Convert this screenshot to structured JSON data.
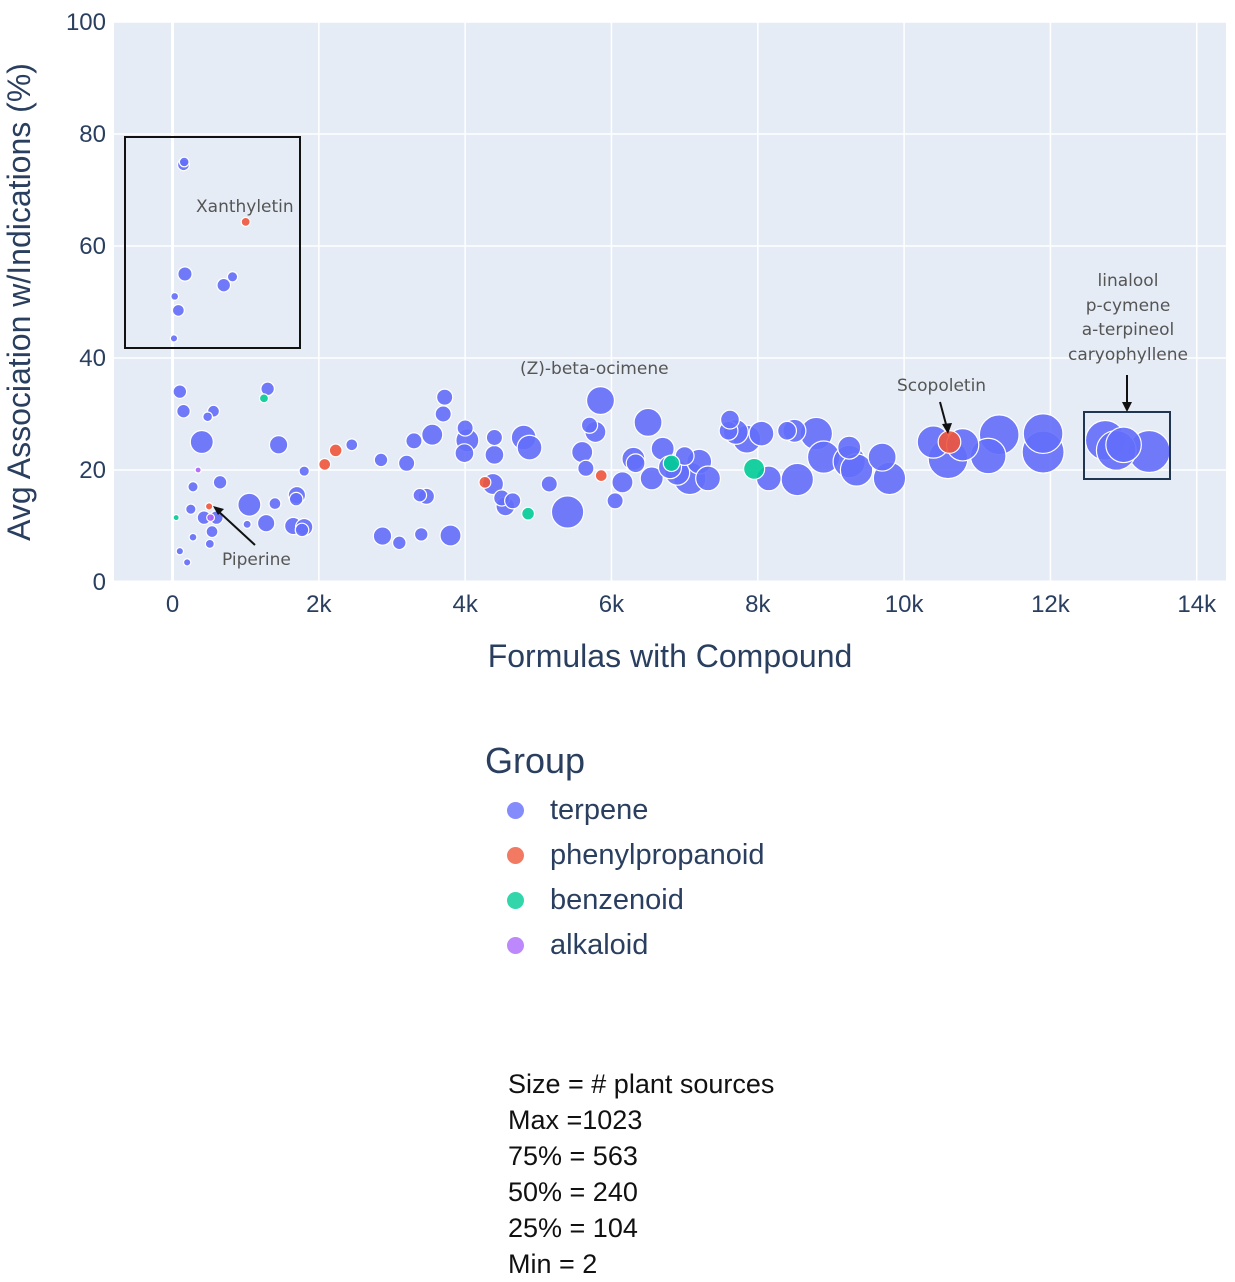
{
  "chart_data": {
    "type": "scatter",
    "xlabel": "Formulas with Compound",
    "ylabel": "Avg Association w/Indications (%)",
    "xlim": [
      -800,
      14400
    ],
    "ylim": [
      0,
      100
    ],
    "x_ticks": [
      0,
      2000,
      4000,
      6000,
      8000,
      10000,
      12000,
      14000
    ],
    "x_tick_labels": [
      "0",
      "2k",
      "4k",
      "6k",
      "8k",
      "10k",
      "12k",
      "14k"
    ],
    "y_ticks": [
      0,
      20,
      40,
      60,
      80,
      100
    ],
    "grid": true,
    "size_encodes": "# plant sources",
    "legend": {
      "title": "Group",
      "placement": "below",
      "entries": [
        {
          "name": "terpene",
          "color": "#636efa"
        },
        {
          "name": "phenylpropanoid",
          "color": "#ef553b"
        },
        {
          "name": "benzenoid",
          "color": "#00cc96"
        },
        {
          "name": "alkaloid",
          "color": "#ab63fa"
        }
      ]
    },
    "series": [
      {
        "name": "terpene",
        "color": "#636efa",
        "points": [
          {
            "x": 150,
            "y": 74.5,
            "s": 40
          },
          {
            "x": 160,
            "y": 75,
            "s": 20
          },
          {
            "x": 170,
            "y": 55,
            "s": 70
          },
          {
            "x": 700,
            "y": 53,
            "s": 60
          },
          {
            "x": 820,
            "y": 54.5,
            "s": 25
          },
          {
            "x": 80,
            "y": 48.5,
            "s": 40
          },
          {
            "x": 30,
            "y": 51,
            "s": 8
          },
          {
            "x": 20,
            "y": 43.5,
            "s": 6
          },
          {
            "x": 100,
            "y": 34,
            "s": 60
          },
          {
            "x": 150,
            "y": 30.5,
            "s": 60
          },
          {
            "x": 480,
            "y": 29.5,
            "s": 20
          },
          {
            "x": 560,
            "y": 30.5,
            "s": 40
          },
          {
            "x": 1300,
            "y": 34.5,
            "s": 60
          },
          {
            "x": 400,
            "y": 25,
            "s": 250
          },
          {
            "x": 1450,
            "y": 24.5,
            "s": 140
          },
          {
            "x": 650,
            "y": 17.8,
            "s": 60
          },
          {
            "x": 280,
            "y": 17,
            "s": 25
          },
          {
            "x": 250,
            "y": 13,
            "s": 25
          },
          {
            "x": 430,
            "y": 11.5,
            "s": 60
          },
          {
            "x": 600,
            "y": 11.5,
            "s": 60
          },
          {
            "x": 540,
            "y": 9,
            "s": 40
          },
          {
            "x": 510,
            "y": 6.8,
            "s": 15
          },
          {
            "x": 1050,
            "y": 13.8,
            "s": 250
          },
          {
            "x": 1400,
            "y": 14,
            "s": 40
          },
          {
            "x": 1280,
            "y": 10.5,
            "s": 120
          },
          {
            "x": 1700,
            "y": 15.5,
            "s": 120
          },
          {
            "x": 1690,
            "y": 14.8,
            "s": 60
          },
          {
            "x": 1650,
            "y": 10,
            "s": 120
          },
          {
            "x": 1800,
            "y": 9.8,
            "s": 120
          },
          {
            "x": 1770,
            "y": 9.3,
            "s": 60
          },
          {
            "x": 1800,
            "y": 19.8,
            "s": 25
          },
          {
            "x": 2450,
            "y": 24.5,
            "s": 40
          },
          {
            "x": 1020,
            "y": 10.3,
            "s": 10
          },
          {
            "x": 200,
            "y": 3.5,
            "s": 6
          },
          {
            "x": 100,
            "y": 5.5,
            "s": 6
          },
          {
            "x": 280,
            "y": 8,
            "s": 8
          },
          {
            "x": 2850,
            "y": 21.8,
            "s": 60
          },
          {
            "x": 2870,
            "y": 8.2,
            "s": 140
          },
          {
            "x": 3100,
            "y": 7,
            "s": 60
          },
          {
            "x": 3200,
            "y": 21.2,
            "s": 100
          },
          {
            "x": 3300,
            "y": 25.2,
            "s": 100
          },
          {
            "x": 3380,
            "y": 15.5,
            "s": 60
          },
          {
            "x": 3400,
            "y": 8.5,
            "s": 60
          },
          {
            "x": 3470,
            "y": 15.3,
            "s": 100
          },
          {
            "x": 3550,
            "y": 26.3,
            "s": 200
          },
          {
            "x": 3720,
            "y": 33,
            "s": 100
          },
          {
            "x": 3700,
            "y": 30,
            "s": 100
          },
          {
            "x": 3800,
            "y": 8.3,
            "s": 200
          },
          {
            "x": 4000,
            "y": 27.5,
            "s": 100
          },
          {
            "x": 4030,
            "y": 25.3,
            "s": 250
          },
          {
            "x": 3990,
            "y": 23,
            "s": 150
          },
          {
            "x": 4400,
            "y": 25.8,
            "s": 100
          },
          {
            "x": 4380,
            "y": 17.5,
            "s": 200
          },
          {
            "x": 4400,
            "y": 22.7,
            "s": 150
          },
          {
            "x": 4500,
            "y": 15,
            "s": 100
          },
          {
            "x": 4550,
            "y": 13.5,
            "s": 150
          },
          {
            "x": 4650,
            "y": 14.5,
            "s": 100
          },
          {
            "x": 4800,
            "y": 25.8,
            "s": 300
          },
          {
            "x": 4880,
            "y": 24,
            "s": 300
          },
          {
            "x": 5150,
            "y": 17.5,
            "s": 100
          },
          {
            "x": 5400,
            "y": 12.5,
            "s": 563
          },
          {
            "x": 5600,
            "y": 23.2,
            "s": 200
          },
          {
            "x": 5650,
            "y": 20.3,
            "s": 100
          },
          {
            "x": 5700,
            "y": 28,
            "s": 100
          },
          {
            "x": 5780,
            "y": 26.8,
            "s": 200
          },
          {
            "x": 5850,
            "y": 32.4,
            "s": 400
          },
          {
            "x": 6050,
            "y": 14.5,
            "s": 100
          },
          {
            "x": 6150,
            "y": 17.8,
            "s": 200
          },
          {
            "x": 6300,
            "y": 22,
            "s": 250
          },
          {
            "x": 6330,
            "y": 21.2,
            "s": 150
          },
          {
            "x": 6500,
            "y": 28.5,
            "s": 400
          },
          {
            "x": 6550,
            "y": 18.5,
            "s": 250
          },
          {
            "x": 6700,
            "y": 23.8,
            "s": 250
          },
          {
            "x": 6800,
            "y": 20.5,
            "s": 250
          },
          {
            "x": 6900,
            "y": 19.5,
            "s": 300
          },
          {
            "x": 7000,
            "y": 22.5,
            "s": 150
          },
          {
            "x": 7070,
            "y": 18.5,
            "s": 563
          },
          {
            "x": 7200,
            "y": 21.5,
            "s": 300
          },
          {
            "x": 7320,
            "y": 18.5,
            "s": 300
          },
          {
            "x": 7600,
            "y": 27,
            "s": 150
          },
          {
            "x": 7620,
            "y": 29,
            "s": 150
          },
          {
            "x": 7700,
            "y": 26.8,
            "s": 300
          },
          {
            "x": 7850,
            "y": 25.5,
            "s": 400
          },
          {
            "x": 8050,
            "y": 26.5,
            "s": 300
          },
          {
            "x": 8150,
            "y": 18.5,
            "s": 300
          },
          {
            "x": 8400,
            "y": 27,
            "s": 150
          },
          {
            "x": 8500,
            "y": 27,
            "s": 250
          },
          {
            "x": 8540,
            "y": 18.3,
            "s": 563
          },
          {
            "x": 8800,
            "y": 26.5,
            "s": 563
          },
          {
            "x": 8900,
            "y": 22.3,
            "s": 563
          },
          {
            "x": 9250,
            "y": 24,
            "s": 250
          },
          {
            "x": 9250,
            "y": 21.5,
            "s": 563
          },
          {
            "x": 9350,
            "y": 20,
            "s": 563
          },
          {
            "x": 9700,
            "y": 22.3,
            "s": 400
          },
          {
            "x": 9800,
            "y": 18.5,
            "s": 563
          },
          {
            "x": 10400,
            "y": 25,
            "s": 563
          },
          {
            "x": 10600,
            "y": 22,
            "s": 900
          },
          {
            "x": 10800,
            "y": 24.5,
            "s": 563
          },
          {
            "x": 11150,
            "y": 22.5,
            "s": 700
          },
          {
            "x": 11300,
            "y": 26.3,
            "s": 900
          },
          {
            "x": 11900,
            "y": 26.5,
            "s": 900
          },
          {
            "x": 11900,
            "y": 23.2,
            "s": 1023
          },
          {
            "x": 12750,
            "y": 25.3,
            "s": 900
          },
          {
            "x": 12900,
            "y": 23.5,
            "s": 900
          },
          {
            "x": 13000,
            "y": 24.5,
            "s": 700
          },
          {
            "x": 13350,
            "y": 23.3,
            "s": 1023
          }
        ]
      },
      {
        "name": "phenylpropanoid",
        "color": "#ef553b",
        "points": [
          {
            "x": 1000,
            "y": 64.3,
            "s": 15
          },
          {
            "x": 2080,
            "y": 21,
            "s": 40
          },
          {
            "x": 2230,
            "y": 23.5,
            "s": 50
          },
          {
            "x": 4270,
            "y": 17.8,
            "s": 40
          },
          {
            "x": 5860,
            "y": 19,
            "s": 40
          },
          {
            "x": 10620,
            "y": 25,
            "s": 240
          },
          {
            "x": 500,
            "y": 13.5,
            "s": 6
          }
        ]
      },
      {
        "name": "benzenoid",
        "color": "#00cc96",
        "points": [
          {
            "x": 1250,
            "y": 32.8,
            "s": 15
          },
          {
            "x": 4860,
            "y": 12.2,
            "s": 50
          },
          {
            "x": 6820,
            "y": 21.2,
            "s": 104
          },
          {
            "x": 7950,
            "y": 20.2,
            "s": 200
          },
          {
            "x": 50,
            "y": 11.5,
            "s": 2
          }
        ]
      },
      {
        "name": "alkaloid",
        "color": "#ab63fa",
        "points": [
          {
            "x": 520,
            "y": 11.5,
            "s": 8
          },
          {
            "x": 350,
            "y": 20,
            "s": 2
          }
        ]
      }
    ],
    "annotations": [
      {
        "text": "Xanthyletin"
      },
      {
        "text": "Piperine"
      },
      {
        "text": "(Z)-beta-ocimene"
      },
      {
        "text": "Scopoletin"
      },
      {
        "text": "linalool"
      },
      {
        "text": "p-cymene"
      },
      {
        "text": "a-terpineol"
      },
      {
        "text": "caryophyllene"
      }
    ]
  },
  "size_note": {
    "lines": [
      "Size = # plant sources",
      "Max =1023",
      "75% = 563",
      "50% = 240",
      "25% = 104",
      "Min = 2"
    ]
  }
}
